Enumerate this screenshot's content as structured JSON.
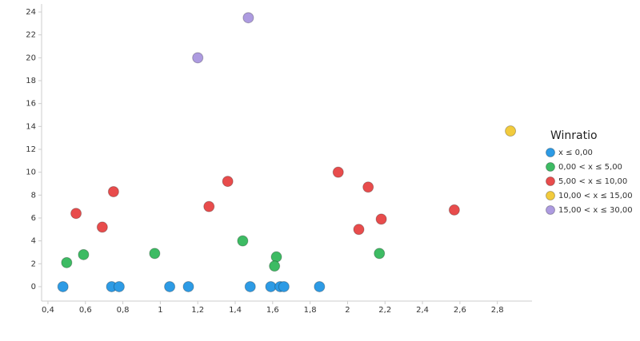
{
  "chart_data": {
    "type": "scatter",
    "legend_title": "Winratio",
    "legend_position": "right",
    "grid": false,
    "xlim": [
      0.366,
      2.985
    ],
    "ylim": [
      -1.26,
      24.7
    ],
    "xticks": [
      {
        "value": 0.4,
        "label": "0,4"
      },
      {
        "value": 0.6,
        "label": "0,6"
      },
      {
        "value": 0.8,
        "label": "0,8"
      },
      {
        "value": 1,
        "label": "1"
      },
      {
        "value": 1.2,
        "label": "1,2"
      },
      {
        "value": 1.4,
        "label": "1,4"
      },
      {
        "value": 1.6,
        "label": "1,6"
      },
      {
        "value": 1.8,
        "label": "1,8"
      },
      {
        "value": 2,
        "label": "2"
      },
      {
        "value": 2.2,
        "label": "2,2"
      },
      {
        "value": 2.4,
        "label": "2,4"
      },
      {
        "value": 2.6,
        "label": "2,6"
      },
      {
        "value": 2.8,
        "label": "2,8"
      }
    ],
    "yticks": [
      0,
      2,
      4,
      6,
      8,
      10,
      12,
      14,
      16,
      18,
      20,
      22,
      24
    ],
    "series": [
      {
        "name": "x ≤ 0,00",
        "color": "#2d9be5",
        "x": [
          0.48,
          0.74,
          0.78,
          1.05,
          1.15,
          1.48,
          1.59,
          1.64,
          1.66,
          1.85
        ],
        "values": [
          0,
          0,
          0,
          0,
          0,
          0,
          0,
          0,
          0,
          0
        ]
      },
      {
        "name": "0,00 < x ≤ 5,00",
        "color": "#3dbb63",
        "x": [
          0.5,
          0.59,
          0.97,
          1.44,
          1.62,
          1.61,
          2.17
        ],
        "values": [
          2.1,
          2.8,
          2.9,
          4.0,
          2.6,
          1.8,
          2.9
        ]
      },
      {
        "name": "5,00 < x ≤ 10,00",
        "color": "#e84c4c",
        "x": [
          0.55,
          0.69,
          0.75,
          1.26,
          1.36,
          1.95,
          2.06,
          2.11,
          2.18,
          2.57
        ],
        "values": [
          6.4,
          5.2,
          8.3,
          7.0,
          9.2,
          10.0,
          5.0,
          8.7,
          5.9,
          6.7
        ]
      },
      {
        "name": "10,00 < x ≤ 15,00",
        "color": "#f2cb3d",
        "x": [
          2.87
        ],
        "values": [
          13.6
        ]
      },
      {
        "name": "15,00 < x ≤ 30,00",
        "color": "#ad9be0",
        "x": [
          1.2,
          1.47
        ],
        "values": [
          20.0,
          23.5
        ]
      }
    ]
  }
}
